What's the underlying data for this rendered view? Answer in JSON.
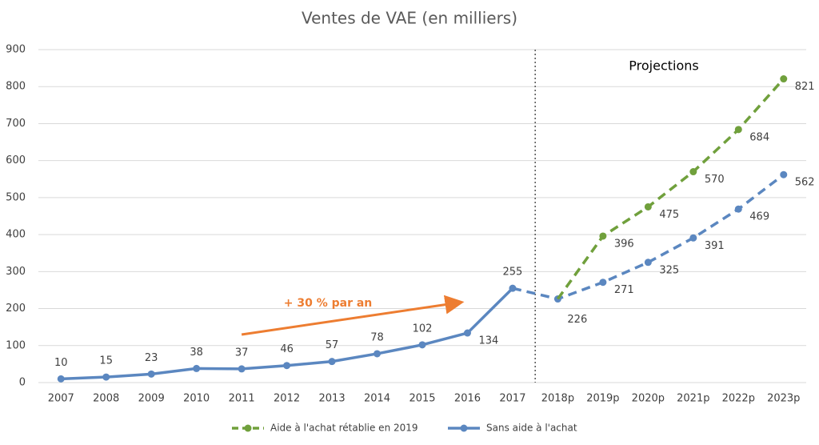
{
  "chart_data": {
    "type": "line",
    "title": "Ventes de VAE (en milliers)",
    "categories": [
      "2007",
      "2008",
      "2009",
      "2010",
      "2011",
      "2012",
      "2013",
      "2014",
      "2015",
      "2016",
      "2017",
      "2018p",
      "2019p",
      "2020p",
      "2021p",
      "2022p",
      "2023p"
    ],
    "projection_start": 11,
    "projection_label": "Projections",
    "annotation": "+ 30 % par an",
    "annotation_color": "#ed7d31",
    "series": [
      {
        "name": "Aide à l'achat rétablie en 2019",
        "color": "#70a03c",
        "values": [
          null,
          null,
          null,
          null,
          null,
          null,
          null,
          null,
          null,
          null,
          null,
          226,
          396,
          475,
          570,
          684,
          821
        ]
      },
      {
        "name": "Sans aide à l'achat",
        "color": "#5b87c0",
        "values": [
          10,
          15,
          23,
          38,
          37,
          46,
          57,
          78,
          102,
          134,
          255,
          226,
          271,
          325,
          391,
          469,
          562
        ]
      }
    ],
    "ylim": [
      0,
      900
    ],
    "yticks": [
      0,
      100,
      200,
      300,
      400,
      500,
      600,
      700,
      800,
      900
    ],
    "grid": true
  }
}
